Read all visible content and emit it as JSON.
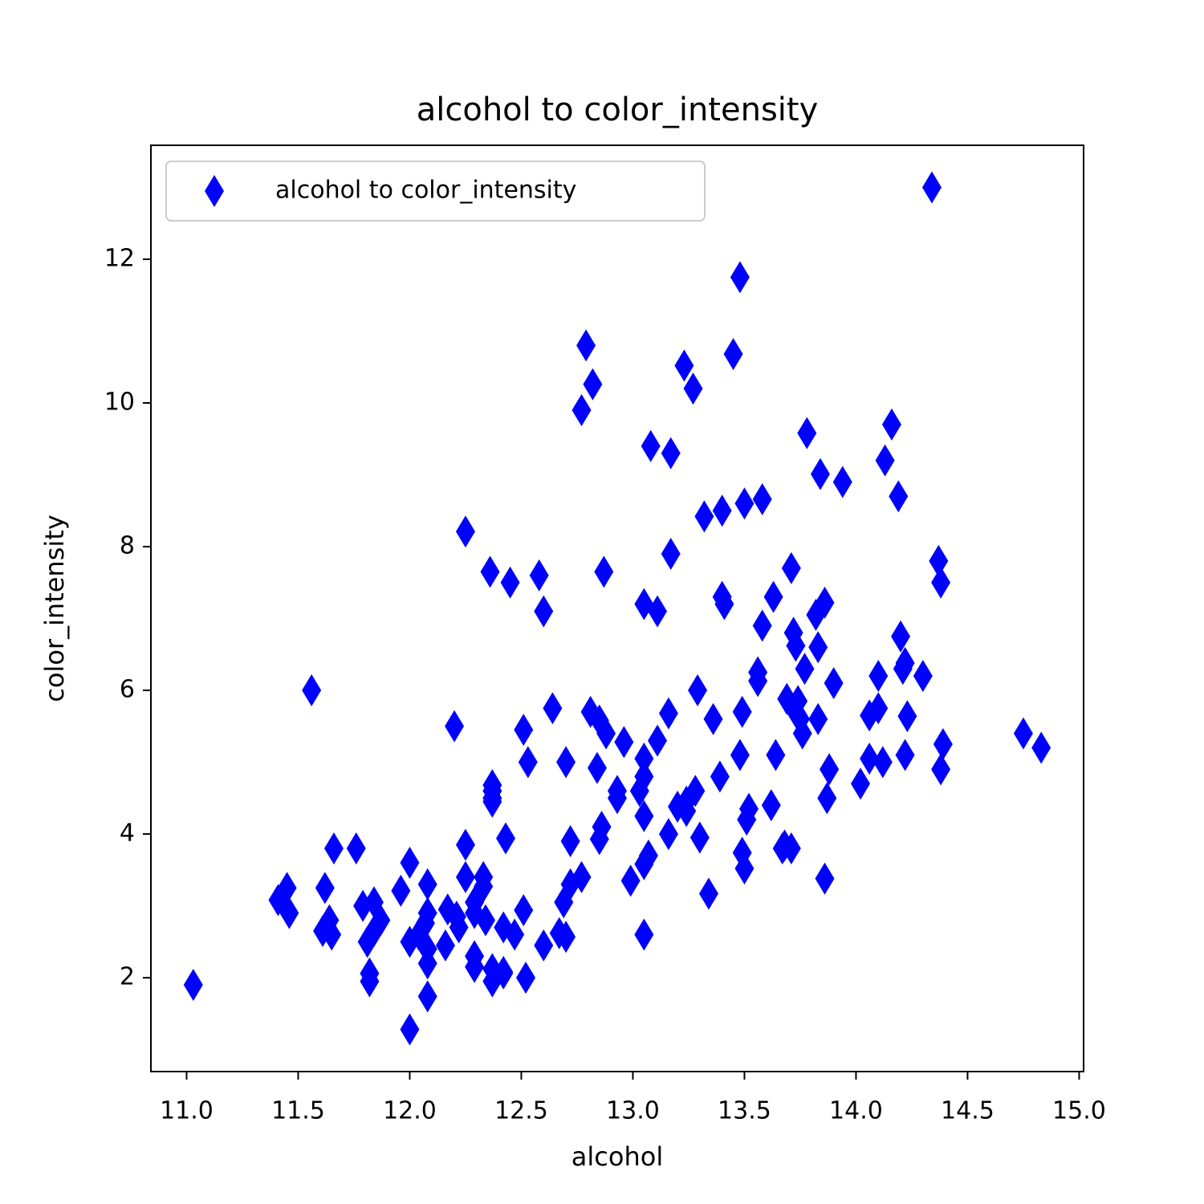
{
  "chart_data": {
    "type": "scatter",
    "title": "alcohol to color_intensity",
    "xlabel": "alcohol",
    "ylabel": "color_intensity",
    "x": [
      14.23,
      13.2,
      13.16,
      14.37,
      13.24,
      14.2,
      14.39,
      14.06,
      14.83,
      13.86,
      14.1,
      14.12,
      13.75,
      14.75,
      14.38,
      13.63,
      14.3,
      13.83,
      14.19,
      13.64,
      14.06,
      12.93,
      13.71,
      12.85,
      13.5,
      13.05,
      13.39,
      13.3,
      13.87,
      14.02,
      13.73,
      13.58,
      13.68,
      13.76,
      13.51,
      13.48,
      13.28,
      13.05,
      13.07,
      14.22,
      13.56,
      13.41,
      13.88,
      13.24,
      13.05,
      14.21,
      14.38,
      13.9,
      14.1,
      13.94,
      13.05,
      13.83,
      13.82,
      13.77,
      13.74,
      13.56,
      14.22,
      13.29,
      13.72,
      12.37,
      12.33,
      12.64,
      13.67,
      12.37,
      12.17,
      12.37,
      13.11,
      12.37,
      13.34,
      12.21,
      12.29,
      13.86,
      13.49,
      12.99,
      11.96,
      11.66,
      13.03,
      11.84,
      12.33,
      12.7,
      12.0,
      12.72,
      12.08,
      13.05,
      11.84,
      12.67,
      12.16,
      11.65,
      11.64,
      12.08,
      12.08,
      12.0,
      12.69,
      12.29,
      11.62,
      12.47,
      11.81,
      12.29,
      12.37,
      12.29,
      12.08,
      12.6,
      12.34,
      11.82,
      12.51,
      12.42,
      12.25,
      12.72,
      12.22,
      11.61,
      11.46,
      12.52,
      11.76,
      11.41,
      12.08,
      11.03,
      11.82,
      12.42,
      12.77,
      12.0,
      11.45,
      11.56,
      12.42,
      13.05,
      11.87,
      12.07,
      12.43,
      11.79,
      12.37,
      12.04,
      12.86,
      12.88,
      12.81,
      12.7,
      12.51,
      12.6,
      12.25,
      12.53,
      13.49,
      12.84,
      12.93,
      13.36,
      13.52,
      13.62,
      12.25,
      13.16,
      13.88,
      12.87,
      13.32,
      13.08,
      13.5,
      12.79,
      13.11,
      13.23,
      12.58,
      13.17,
      13.84,
      12.45,
      14.34,
      13.48,
      12.36,
      13.69,
      12.85,
      12.96,
      13.78,
      13.73,
      13.45,
      12.82,
      13.58,
      13.4,
      12.2,
      12.77,
      14.16,
      13.71,
      13.4,
      13.27,
      13.17,
      14.13
    ],
    "series": [
      {
        "name": "alcohol to color_intensity",
        "color": "#0000ff",
        "values": [
          5.64,
          4.38,
          5.68,
          7.8,
          4.32,
          6.75,
          5.25,
          5.05,
          5.2,
          7.22,
          5.75,
          5.0,
          5.6,
          5.4,
          7.5,
          7.3,
          6.2,
          6.6,
          8.7,
          5.1,
          5.65,
          4.5,
          3.8,
          3.93,
          3.52,
          3.58,
          4.8,
          3.95,
          4.5,
          4.7,
          5.7,
          6.9,
          3.84,
          5.4,
          4.2,
          5.1,
          4.6,
          4.25,
          3.7,
          5.1,
          6.13,
          7.2,
          4.9,
          4.45,
          5.05,
          6.3,
          4.9,
          6.1,
          6.2,
          8.9,
          7.2,
          5.6,
          7.05,
          6.3,
          5.85,
          6.25,
          6.38,
          6.0,
          6.8,
          1.95,
          3.27,
          5.75,
          3.8,
          4.45,
          2.95,
          4.6,
          5.3,
          4.68,
          3.17,
          2.85,
          3.05,
          3.38,
          3.74,
          3.35,
          3.21,
          3.8,
          4.6,
          2.65,
          3.4,
          2.57,
          2.5,
          3.9,
          2.2,
          4.8,
          3.05,
          2.62,
          2.45,
          2.6,
          2.8,
          1.74,
          2.4,
          3.6,
          3.05,
          2.15,
          3.25,
          2.6,
          2.5,
          2.9,
          4.5,
          2.3,
          3.3,
          2.45,
          2.8,
          2.06,
          2.94,
          2.7,
          3.4,
          3.3,
          2.7,
          2.65,
          2.9,
          2.0,
          3.8,
          3.08,
          2.9,
          1.9,
          1.95,
          2.06,
          3.4,
          1.28,
          3.25,
          6.0,
          2.08,
          2.6,
          2.8,
          2.76,
          3.94,
          3.0,
          2.12,
          2.6,
          4.1,
          5.4,
          5.7,
          5.0,
          5.45,
          7.1,
          3.85,
          5.0,
          5.7,
          4.92,
          4.6,
          5.6,
          4.35,
          4.4,
          8.21,
          4.0,
          4.9,
          7.65,
          8.42,
          9.4,
          8.6,
          10.8,
          7.1,
          10.52,
          7.6,
          7.9,
          9.01,
          7.5,
          13.0,
          11.75,
          7.65,
          5.88,
          5.58,
          5.28,
          9.58,
          6.62,
          10.68,
          10.26,
          8.66,
          8.5,
          5.5,
          9.9,
          9.7,
          7.7,
          7.3,
          10.2,
          9.3,
          9.2
        ]
      }
    ],
    "xlim": [
      10.84,
      15.02
    ],
    "ylim": [
      0.694,
      13.586
    ],
    "xticks": [
      {
        "value": 11,
        "label": "11.0"
      },
      {
        "value": 11.5,
        "label": "11.5"
      },
      {
        "value": 12,
        "label": "12.0"
      },
      {
        "value": 12.5,
        "label": "12.5"
      },
      {
        "value": 13,
        "label": "13.0"
      },
      {
        "value": 13.5,
        "label": "13.5"
      },
      {
        "value": 14,
        "label": "14.0"
      },
      {
        "value": 14.5,
        "label": "14.5"
      },
      {
        "value": 15,
        "label": "15.0"
      }
    ],
    "yticks": [
      2,
      4,
      6,
      8,
      10,
      12
    ],
    "legend": "upper left",
    "grid": false
  }
}
